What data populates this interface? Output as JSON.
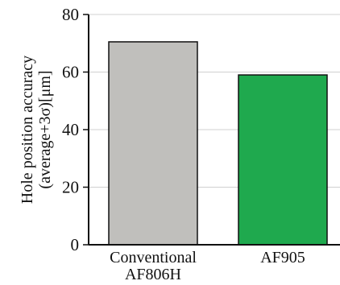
{
  "chart_data": {
    "type": "bar",
    "categories": [
      {
        "lines": [
          "Conventional",
          "AF806H"
        ]
      },
      {
        "lines": [
          "AF905"
        ]
      }
    ],
    "values": [
      70.5,
      59
    ],
    "bar_colors": [
      "#c0bfbc",
      "#1fa94e"
    ],
    "ylabel_lines": [
      "Hole position accuracy",
      "(average+3σ)[μm]"
    ],
    "ylim": [
      0,
      80
    ],
    "yticks": [
      0,
      20,
      40,
      60,
      80
    ],
    "grid": true
  }
}
